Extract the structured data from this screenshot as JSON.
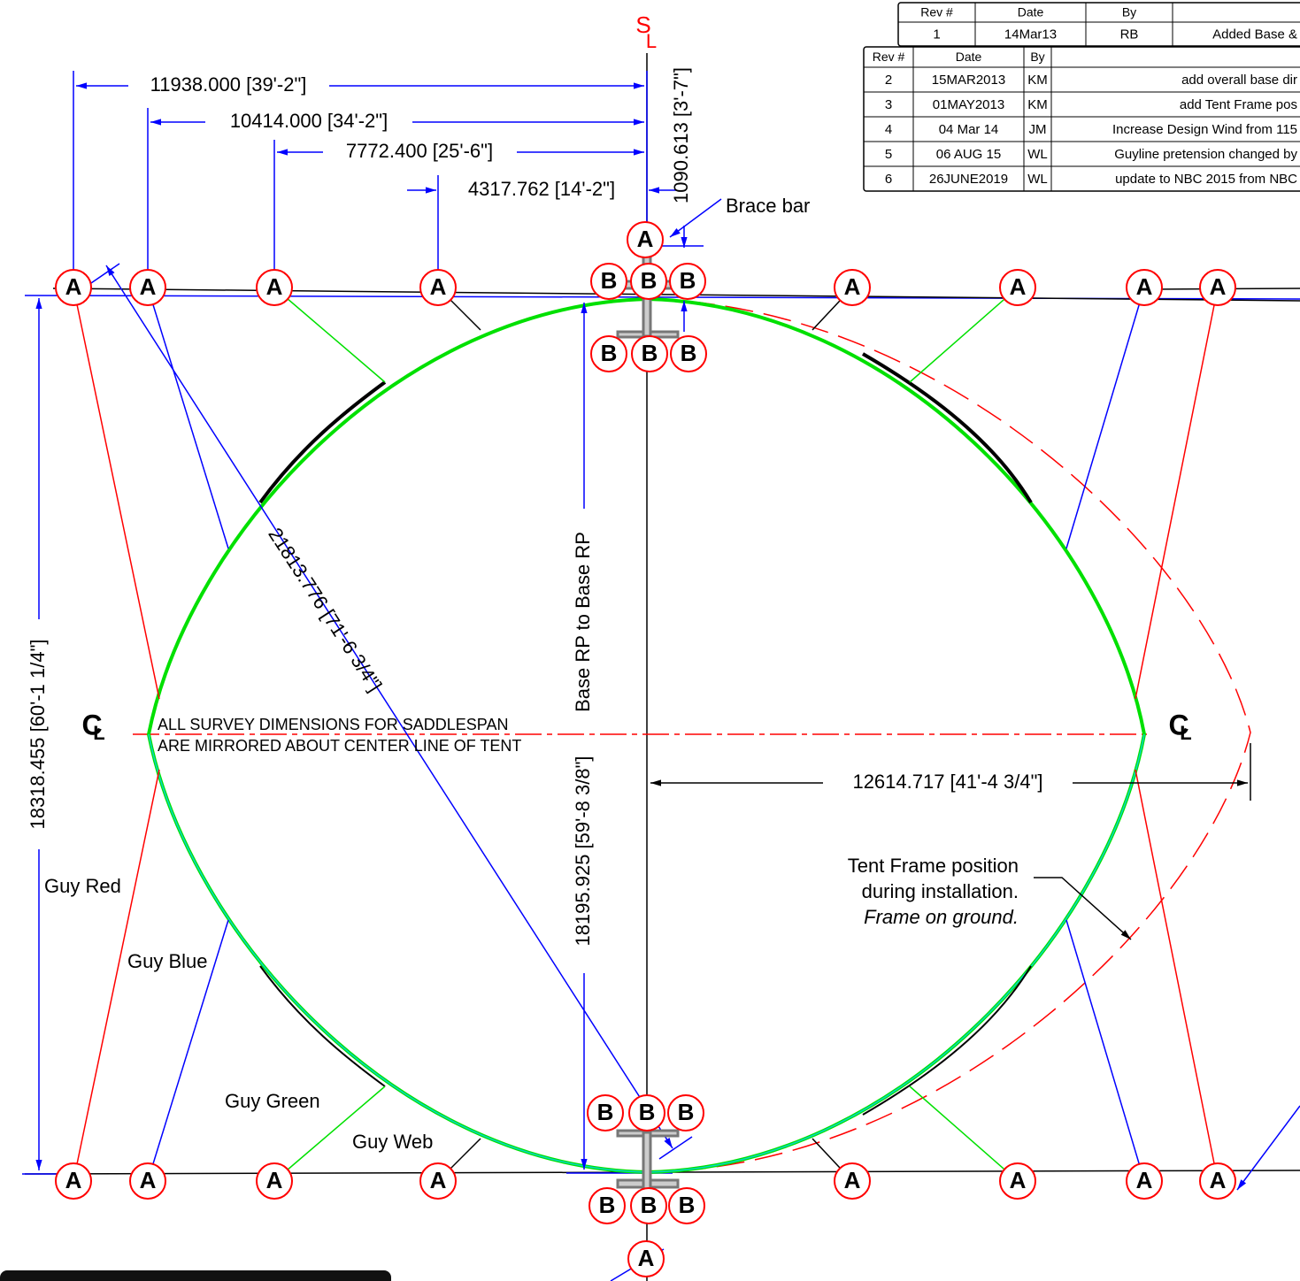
{
  "revision_table_1": {
    "header": [
      "Rev #",
      "Date",
      "By"
    ],
    "rows": [
      [
        "1",
        "14Mar13",
        "RB",
        "Added Base &"
      ]
    ]
  },
  "revision_table_2": {
    "header": [
      "Rev #",
      "Date",
      "By"
    ],
    "rows": [
      [
        "2",
        "15MAR2013",
        "KM",
        "add overall base dir"
      ],
      [
        "3",
        "01MAY2013",
        "KM",
        "add Tent Frame pos"
      ],
      [
        "4",
        "04 Mar 14",
        "JM",
        "Increase Design Wind from 115"
      ],
      [
        "5",
        "06 AUG 15",
        "WL",
        "Guyline pretension changed by"
      ],
      [
        "6",
        "26JUNE2019",
        "WL",
        "update to NBC 2015 from NBC"
      ]
    ]
  },
  "dimensions": {
    "a1_to_sl": "11938.000 [39'-2\"]",
    "a2_to_sl": "10414.000 [34'-2\"]",
    "a3_to_sl": "7772.400 [25'-6\"]",
    "a4_to_sl": "4317.762 [14'-2\"]",
    "brace_offset": "1090.613 [3'-7\"]",
    "overall_length": "18318.455 [60'-1 1/4\"]",
    "diagonal": "21813.776 [71'-6 3/4\"]",
    "base_rp": "18195.925 [59'-8 3/8\"]",
    "base_rp_note": "Base RP to Base RP",
    "half_width": "12614.717 [41'-4 3/4\"]"
  },
  "markers": {
    "a": "A",
    "b": "B"
  },
  "symbols": {
    "s": "S",
    "l": "L",
    "c": "C"
  },
  "notes": [
    "ALL SURVEY DIMENSIONS FOR SADDLESPAN",
    "ARE MIRRORED ABOUT CENTER LINE OF TENT"
  ],
  "callouts": {
    "brace_bar": "Brace bar",
    "frame": [
      "Tent Frame position",
      "during installation.",
      "Frame on ground."
    ]
  },
  "guy_labels": [
    "Guy Red",
    "Guy Blue",
    "Guy Green",
    "Guy Web"
  ]
}
